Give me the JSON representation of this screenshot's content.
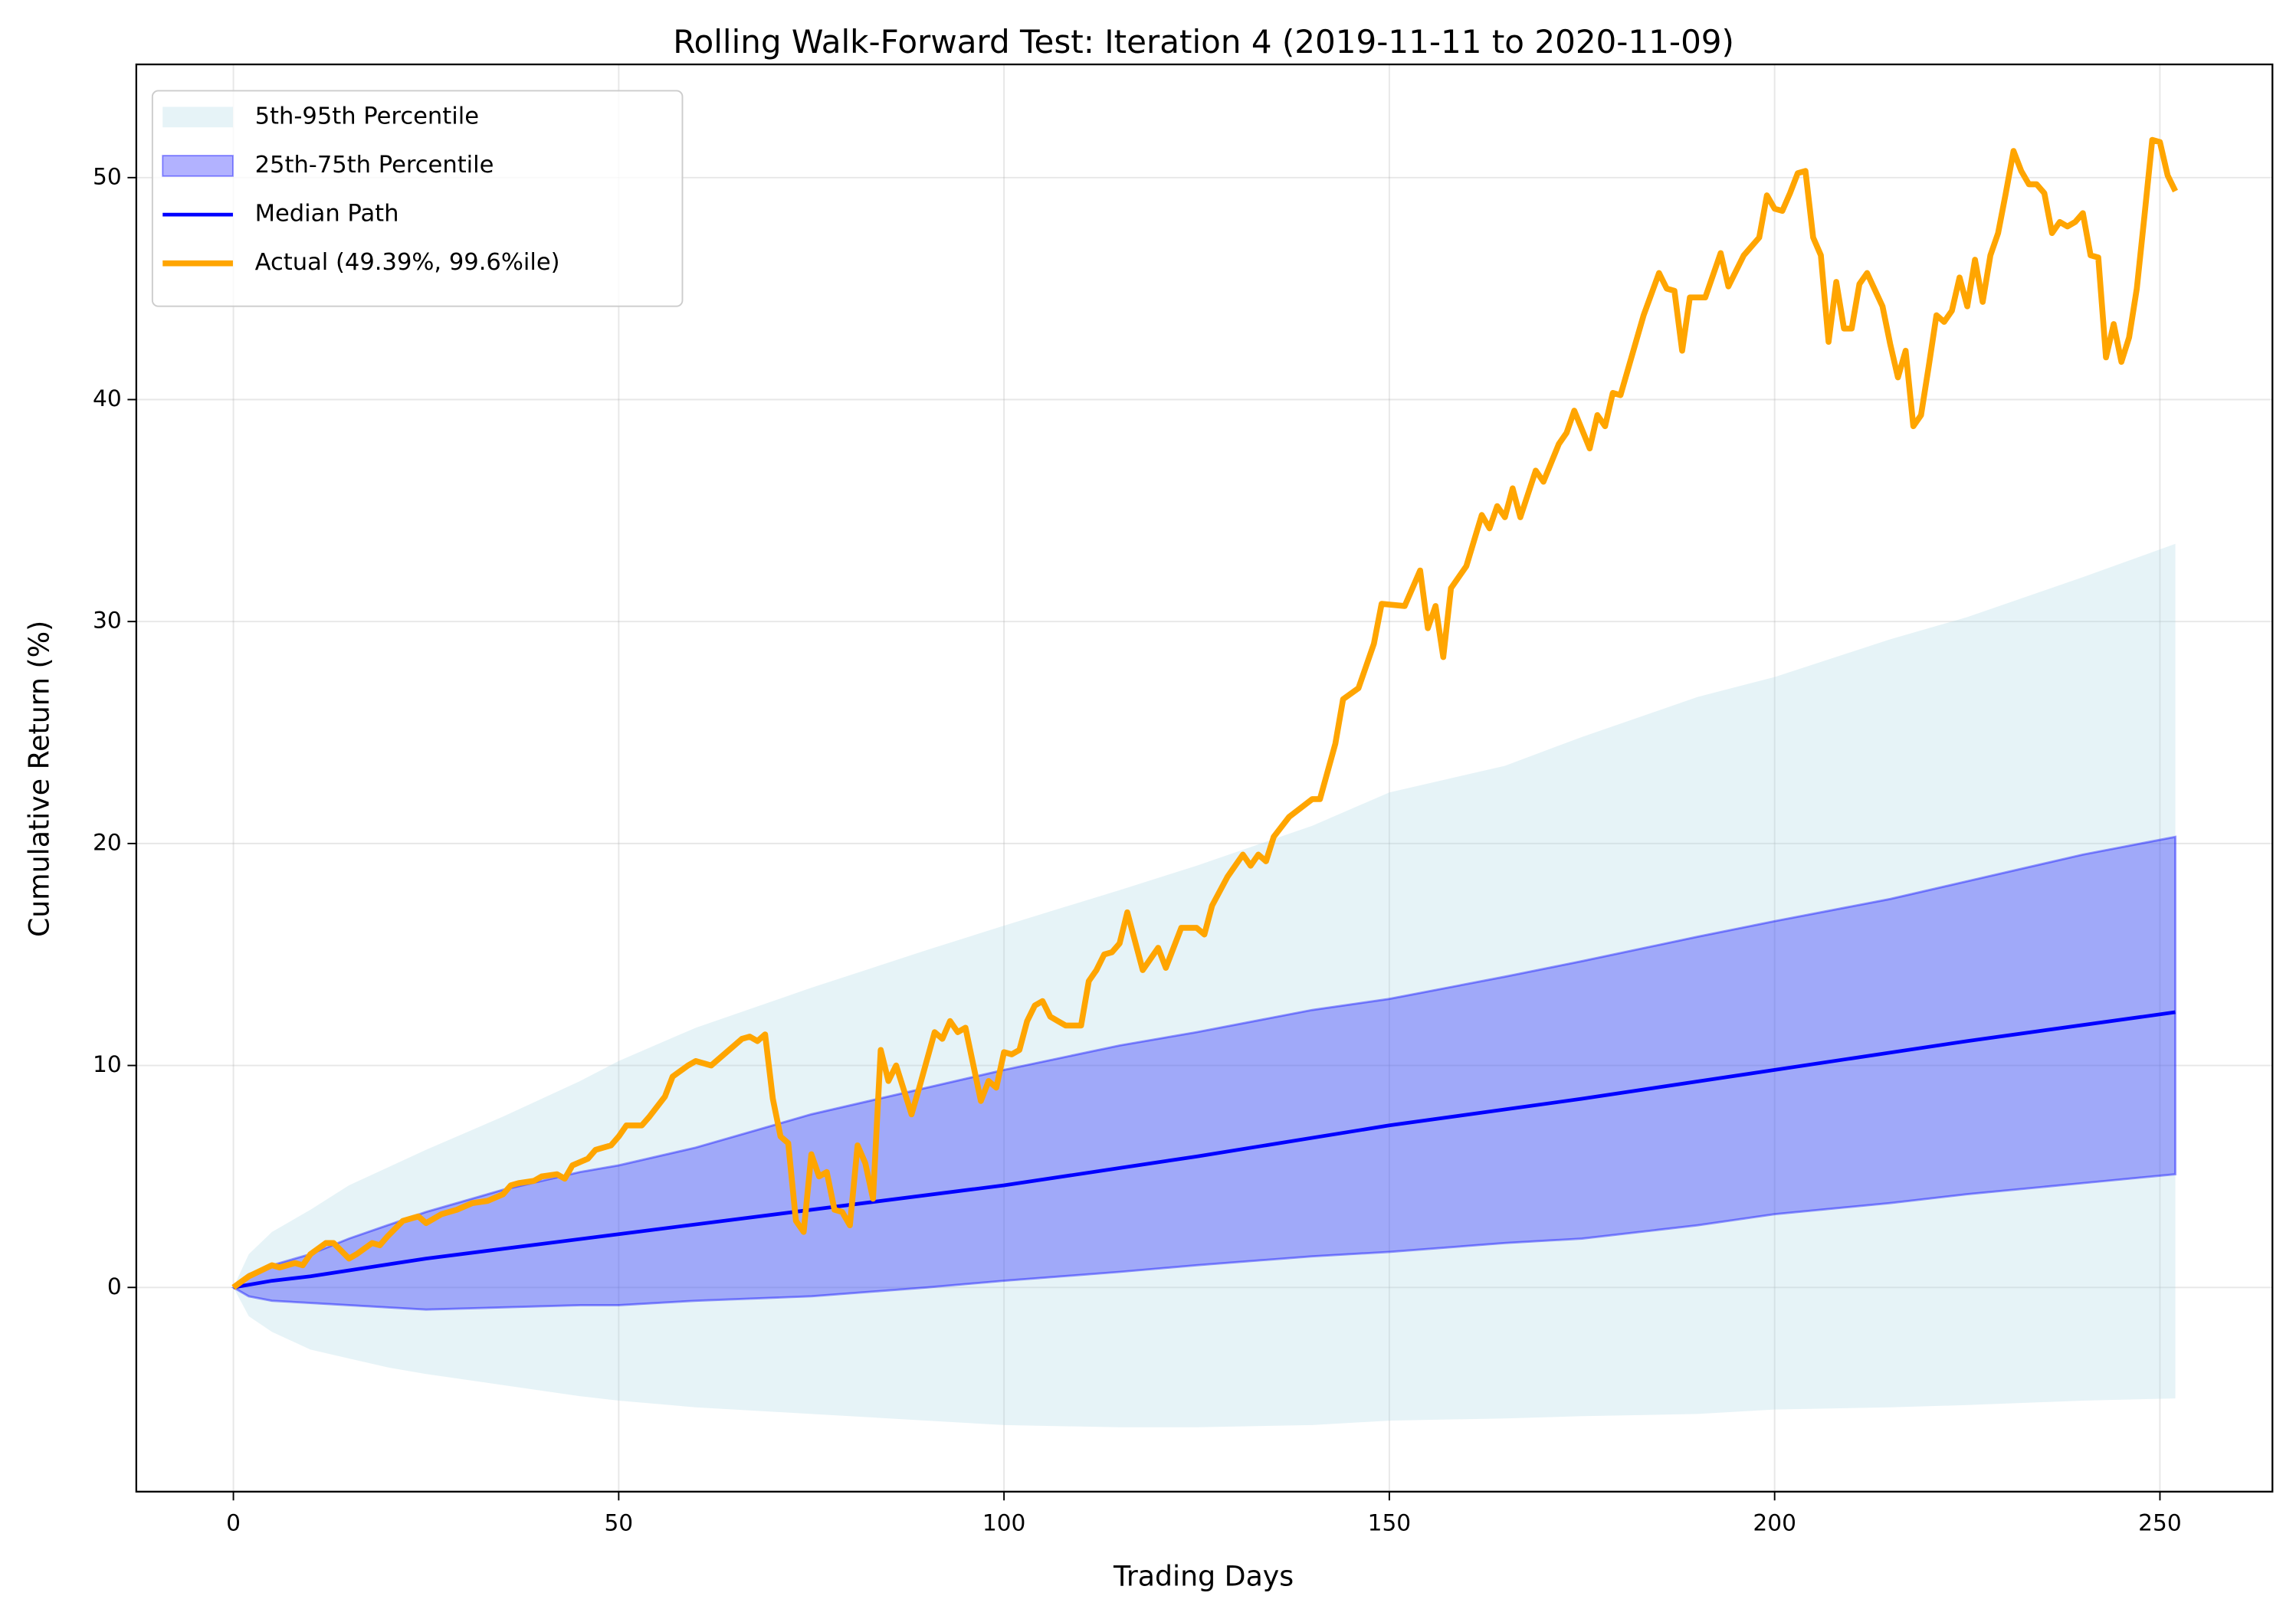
{
  "chart_data": {
    "type": "line",
    "title": "Rolling Walk-Forward Test: Iteration 4 (2019-11-11 to 2020-11-09)",
    "xlabel": "Trading Days",
    "ylabel": "Cumulative Return (%)",
    "xlim": [
      -12.6,
      264.6
    ],
    "ylim": [
      -9.2,
      55.1
    ],
    "xticks": [
      0,
      50,
      100,
      150,
      200,
      250
    ],
    "yticks": [
      0,
      10,
      20,
      30,
      40,
      50
    ],
    "grid": true,
    "legend": "upper left",
    "bands": [
      {
        "name": "5th-95th Percentile",
        "color": "#add8e6",
        "x": [
          0,
          2,
          5,
          10,
          15,
          20,
          25,
          35,
          45,
          50,
          60,
          75,
          90,
          100,
          115,
          125,
          140,
          150,
          165,
          175,
          190,
          200,
          215,
          225,
          240,
          252
        ],
        "lower": [
          0,
          -1.3,
          -2,
          -2.8,
          -3.2,
          -3.6,
          -3.9,
          -4.4,
          -4.9,
          -5.1,
          -5.4,
          -5.7,
          -6,
          -6.2,
          -6.3,
          -6.3,
          -6.2,
          -6,
          -5.9,
          -5.8,
          -5.7,
          -5.5,
          -5.4,
          -5.3,
          -5.1,
          -5
        ],
        "upper": [
          0,
          1.5,
          2.5,
          3.5,
          4.6,
          5.4,
          6.2,
          7.7,
          9.3,
          10.2,
          11.7,
          13.5,
          15.2,
          16.3,
          17.9,
          19,
          20.8,
          22.3,
          23.5,
          24.8,
          26.6,
          27.5,
          29.2,
          30.2,
          32,
          33.5
        ]
      },
      {
        "name": "25th-75th Percentile",
        "color": "#0000ff",
        "x": [
          0,
          2,
          5,
          10,
          15,
          20,
          25,
          35,
          45,
          50,
          60,
          75,
          90,
          100,
          115,
          125,
          140,
          150,
          165,
          175,
          190,
          200,
          215,
          225,
          240,
          252
        ],
        "lower": [
          0,
          -0.4,
          -0.6,
          -0.7,
          -0.8,
          -0.9,
          -1,
          -0.9,
          -0.8,
          -0.8,
          -0.6,
          -0.4,
          0,
          0.3,
          0.7,
          1,
          1.4,
          1.6,
          2,
          2.2,
          2.8,
          3.3,
          3.8,
          4.2,
          4.7,
          5.1
        ],
        "upper": [
          0,
          0.6,
          1,
          1.5,
          2.2,
          2.8,
          3.4,
          4.4,
          5.2,
          5.5,
          6.3,
          7.8,
          9,
          9.8,
          10.9,
          11.5,
          12.5,
          13,
          14,
          14.7,
          15.8,
          16.5,
          17.5,
          18.3,
          19.5,
          20.3
        ]
      }
    ],
    "series": [
      {
        "name": "Median Path",
        "color": "#0000ff",
        "x": [
          0,
          5,
          10,
          25,
          50,
          75,
          100,
          125,
          150,
          175,
          200,
          225,
          252
        ],
        "values": [
          0,
          0.3,
          0.5,
          1.3,
          2.4,
          3.5,
          4.6,
          5.9,
          7.3,
          8.5,
          9.8,
          11.1,
          12.4
        ]
      },
      {
        "name": "Actual (49.39%, 99.6%ile)",
        "color": "#ffa500",
        "x": [
          0,
          2,
          5,
          6,
          8,
          9,
          10,
          12,
          13,
          15,
          16,
          18,
          19,
          20,
          22,
          24,
          25,
          27,
          29,
          31,
          33,
          35,
          36,
          37,
          39,
          40,
          42,
          43,
          44,
          46,
          47,
          49,
          50,
          51,
          53,
          54,
          56,
          57,
          59,
          60,
          62,
          64,
          66,
          67,
          68,
          69,
          70,
          71,
          72,
          73,
          74,
          75,
          76,
          77,
          78,
          79,
          80,
          81,
          82,
          83,
          84,
          85,
          86,
          88,
          89,
          91,
          92,
          93,
          94,
          95,
          97,
          98,
          99,
          100,
          101,
          102,
          103,
          104,
          105,
          106,
          107,
          108,
          110,
          111,
          112,
          113,
          114,
          115,
          116,
          118,
          120,
          121,
          123,
          125,
          126,
          127,
          129,
          131,
          132,
          133,
          134,
          135,
          137,
          140,
          141,
          143,
          144,
          146,
          148,
          149,
          152,
          154,
          155,
          156,
          157,
          158,
          160,
          162,
          163,
          164,
          165,
          166,
          167,
          169,
          170,
          172,
          173,
          174,
          176,
          177,
          178,
          179,
          180,
          183,
          185,
          186,
          187,
          188,
          189,
          191,
          193,
          194,
          196,
          198,
          199,
          200,
          201,
          202,
          203,
          204,
          205,
          206,
          207,
          208,
          209,
          210,
          211,
          212,
          214,
          215,
          216,
          217,
          218,
          219,
          220,
          221,
          222,
          223,
          224,
          225,
          226,
          227,
          228,
          229,
          230,
          231,
          232,
          233,
          234,
          235,
          236,
          237,
          238,
          239,
          240,
          241,
          242,
          243,
          244,
          245,
          246,
          247,
          248,
          249,
          250,
          251,
          252
        ],
        "values": [
          0,
          0.5,
          1,
          0.9,
          1.1,
          1,
          1.5,
          2,
          2,
          1.3,
          1.5,
          2,
          1.9,
          2.3,
          3,
          3.2,
          2.9,
          3.3,
          3.5,
          3.8,
          3.9,
          4.2,
          4.6,
          4.7,
          4.8,
          5,
          5.1,
          4.9,
          5.5,
          5.8,
          6.2,
          6.4,
          6.8,
          7.3,
          7.3,
          7.7,
          8.6,
          9.5,
          10,
          10.2,
          10,
          10.6,
          11.2,
          11.3,
          11.1,
          11.4,
          8.5,
          6.8,
          6.5,
          3,
          2.5,
          6,
          5,
          5.2,
          3.5,
          3.4,
          2.8,
          6.4,
          5.6,
          4,
          10.7,
          9.3,
          10,
          7.8,
          9,
          11.5,
          11.2,
          12,
          11.5,
          11.7,
          8.4,
          9.3,
          9,
          10.6,
          10.5,
          10.7,
          12,
          12.7,
          12.9,
          12.2,
          12,
          11.8,
          11.8,
          13.8,
          14.3,
          15,
          15.1,
          15.5,
          16.9,
          14.3,
          15.3,
          14.4,
          16.2,
          16.2,
          15.9,
          17.2,
          18.5,
          19.5,
          19,
          19.5,
          19.2,
          20.3,
          21.2,
          22,
          22,
          24.5,
          26.5,
          27,
          29,
          30.8,
          30.7,
          32.3,
          29.7,
          30.7,
          28.4,
          31.5,
          32.5,
          34.8,
          34.2,
          35.2,
          34.7,
          36,
          34.7,
          36.8,
          36.3,
          38,
          38.5,
          39.5,
          37.8,
          39.3,
          38.8,
          40.3,
          40.2,
          43.8,
          45.7,
          45,
          44.9,
          42.2,
          44.6,
          44.6,
          46.6,
          45.1,
          46.5,
          47.3,
          49.2,
          48.6,
          48.5,
          49.3,
          50.2,
          50.3,
          47.3,
          46.5,
          42.6,
          45.3,
          43.2,
          43.2,
          45.2,
          45.7,
          44.2,
          42.5,
          41,
          42.2,
          38.8,
          39.3,
          41.5,
          43.8,
          43.5,
          44,
          45.5,
          44.2,
          46.3,
          44.4,
          46.5,
          47.5,
          49.3,
          51.2,
          50.3,
          49.7,
          49.7,
          49.3,
          47.5,
          48,
          47.8,
          48,
          48.4,
          46.5,
          46.4,
          41.9,
          43.4,
          41.7,
          42.8,
          45,
          48.3,
          51.7,
          51.6,
          50.1,
          49.39
        ]
      }
    ]
  }
}
